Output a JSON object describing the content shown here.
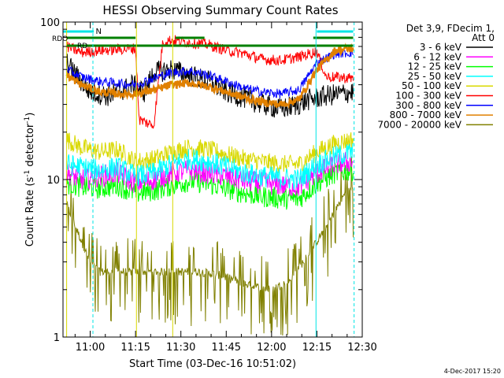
{
  "chart_data": {
    "type": "line",
    "title": "HESSI Observing Summary Count Rates",
    "xlabel": "Start Time (03-Dec-16 10:51:02)",
    "ylabel": "Count Rate (s⁻¹ detector⁻¹)",
    "ylabel_main": "Count Rate (s",
    "ylabel_sup1": "-1",
    "ylabel_mid": " detector",
    "ylabel_sup2": "-1",
    "ylabel_end": ")",
    "yscale": "log",
    "xlim": [
      10.85,
      12.5
    ],
    "ylim": [
      1,
      100
    ],
    "x_ticks": [
      {
        "value": 11.0,
        "label": "11:00"
      },
      {
        "value": 11.25,
        "label": "11:15"
      },
      {
        "value": 11.5,
        "label": "11:30"
      },
      {
        "value": 11.75,
        "label": "11:45"
      },
      {
        "value": 12.0,
        "label": "12:00"
      },
      {
        "value": 12.25,
        "label": "12:15"
      },
      {
        "value": 12.5,
        "label": "12:30"
      }
    ],
    "y_ticks": [
      {
        "value": 1,
        "label": "1"
      },
      {
        "value": 10,
        "label": "10"
      },
      {
        "value": 100,
        "label": "100"
      }
    ],
    "legend_title_1": "Det 3,9, FDecim 1,",
    "legend_title_2": "Att 0",
    "legend_placement": "right",
    "series": [
      {
        "name": "3 - 6 keV",
        "color": "#000000",
        "x": [
          10.87,
          10.95,
          11.0,
          11.1,
          11.2,
          11.23,
          11.3,
          11.35,
          11.45,
          11.55,
          11.65,
          11.75,
          11.85,
          11.95,
          12.05,
          12.15,
          12.2,
          12.3,
          12.45
        ],
        "y": [
          55,
          42,
          36,
          34,
          38,
          40,
          36,
          48,
          50,
          46,
          42,
          36,
          33,
          30,
          28,
          30,
          32,
          34,
          36
        ]
      },
      {
        "name": "6 - 12 keV",
        "color": "#ff00ff",
        "x": [
          10.87,
          10.95,
          11.05,
          11.15,
          11.25,
          11.35,
          11.45,
          11.55,
          11.65,
          11.75,
          11.85,
          11.95,
          12.05,
          12.15,
          12.25,
          12.35,
          12.45
        ],
        "y": [
          11,
          10,
          10.5,
          11,
          9.5,
          10,
          11,
          11.5,
          11,
          10.5,
          9.8,
          9.5,
          9.2,
          9,
          11,
          12.5,
          13
        ]
      },
      {
        "name": "12 - 25 keV",
        "color": "#00ff00",
        "x": [
          10.87,
          10.95,
          11.05,
          11.15,
          11.25,
          11.35,
          11.45,
          11.55,
          11.65,
          11.75,
          11.85,
          11.95,
          12.05,
          12.15,
          12.25,
          12.35,
          12.45
        ],
        "y": [
          9.5,
          9,
          8.8,
          9.2,
          8.2,
          8.5,
          9.2,
          9.8,
          9.4,
          8.8,
          8.2,
          7.8,
          7.6,
          7.5,
          9.5,
          11,
          11.5
        ]
      },
      {
        "name": "25 - 50 keV",
        "color": "#00ffff",
        "x": [
          10.87,
          10.95,
          11.05,
          11.15,
          11.25,
          11.35,
          11.45,
          11.55,
          11.65,
          11.75,
          11.85,
          11.95,
          12.05,
          12.15,
          12.25,
          12.35,
          12.45
        ],
        "y": [
          12.5,
          12,
          11.5,
          12,
          10.5,
          11,
          12.5,
          13.5,
          13,
          12,
          11,
          10.5,
          10.2,
          10,
          12.5,
          14,
          15
        ]
      },
      {
        "name": "50 - 100 keV",
        "color": "#d9d900",
        "x": [
          10.87,
          10.95,
          11.05,
          11.15,
          11.25,
          11.35,
          11.45,
          11.55,
          11.65,
          11.75,
          11.85,
          11.95,
          12.05,
          12.15,
          12.25,
          12.35,
          12.45
        ],
        "y": [
          18,
          16,
          15,
          15.5,
          13,
          13.5,
          15,
          16,
          15.5,
          14.5,
          13.5,
          13,
          12.5,
          12.5,
          15,
          17,
          18
        ]
      },
      {
        "name": "100 - 300 keV",
        "color": "#ff0000",
        "x": [
          10.87,
          10.95,
          11.05,
          11.15,
          11.25,
          11.27,
          11.35,
          11.4,
          11.45,
          11.55,
          11.65,
          11.75,
          11.85,
          11.95,
          12.05,
          12.15,
          12.25,
          12.3,
          12.45
        ],
        "y": [
          70,
          64,
          66,
          67,
          68,
          24,
          22,
          75,
          77,
          74,
          72,
          66,
          63,
          58,
          57,
          60,
          65,
          45,
          44
        ]
      },
      {
        "name": "300 - 800 keV",
        "color": "#0000ff",
        "x": [
          10.87,
          10.95,
          11.05,
          11.15,
          11.25,
          11.35,
          11.45,
          11.55,
          11.65,
          11.75,
          11.85,
          11.95,
          12.05,
          12.15,
          12.25,
          12.35,
          12.45
        ],
        "y": [
          50,
          45,
          42,
          41,
          40,
          44,
          48,
          49,
          46,
          42,
          38,
          36,
          35,
          37,
          55,
          63,
          64
        ]
      },
      {
        "name": "800 - 7000 keV",
        "color": "#e08000",
        "x": [
          10.87,
          10.95,
          11.05,
          11.15,
          11.25,
          11.35,
          11.45,
          11.55,
          11.65,
          11.75,
          11.85,
          11.95,
          12.05,
          12.15,
          12.25,
          12.35,
          12.45
        ],
        "y": [
          46,
          40,
          36,
          35,
          35,
          37,
          40,
          41,
          39,
          36,
          33,
          31,
          30,
          32,
          50,
          66,
          68
        ]
      },
      {
        "name": "7000 - 20000 keV",
        "color": "#808000",
        "x": [
          10.87,
          10.92,
          10.97,
          11.0,
          11.05,
          11.1,
          11.2,
          11.3,
          11.4,
          11.5,
          11.6,
          11.7,
          11.8,
          11.9,
          12.0,
          12.1,
          12.2,
          12.3,
          12.4,
          12.45
        ],
        "y": [
          7,
          5,
          3.6,
          3.0,
          2.6,
          2.6,
          2.6,
          2.6,
          2.6,
          2.6,
          2.6,
          2.5,
          2.3,
          2.1,
          2.0,
          2.3,
          3.3,
          5,
          8,
          9
        ]
      }
    ],
    "annotations": [
      {
        "text": "N",
        "color": "#00e5e5"
      },
      {
        "text": "RDO",
        "color": "#008000"
      },
      {
        "text": "RD",
        "color": "#008000"
      }
    ],
    "timestamp": "4-Dec-2017 15:20"
  }
}
